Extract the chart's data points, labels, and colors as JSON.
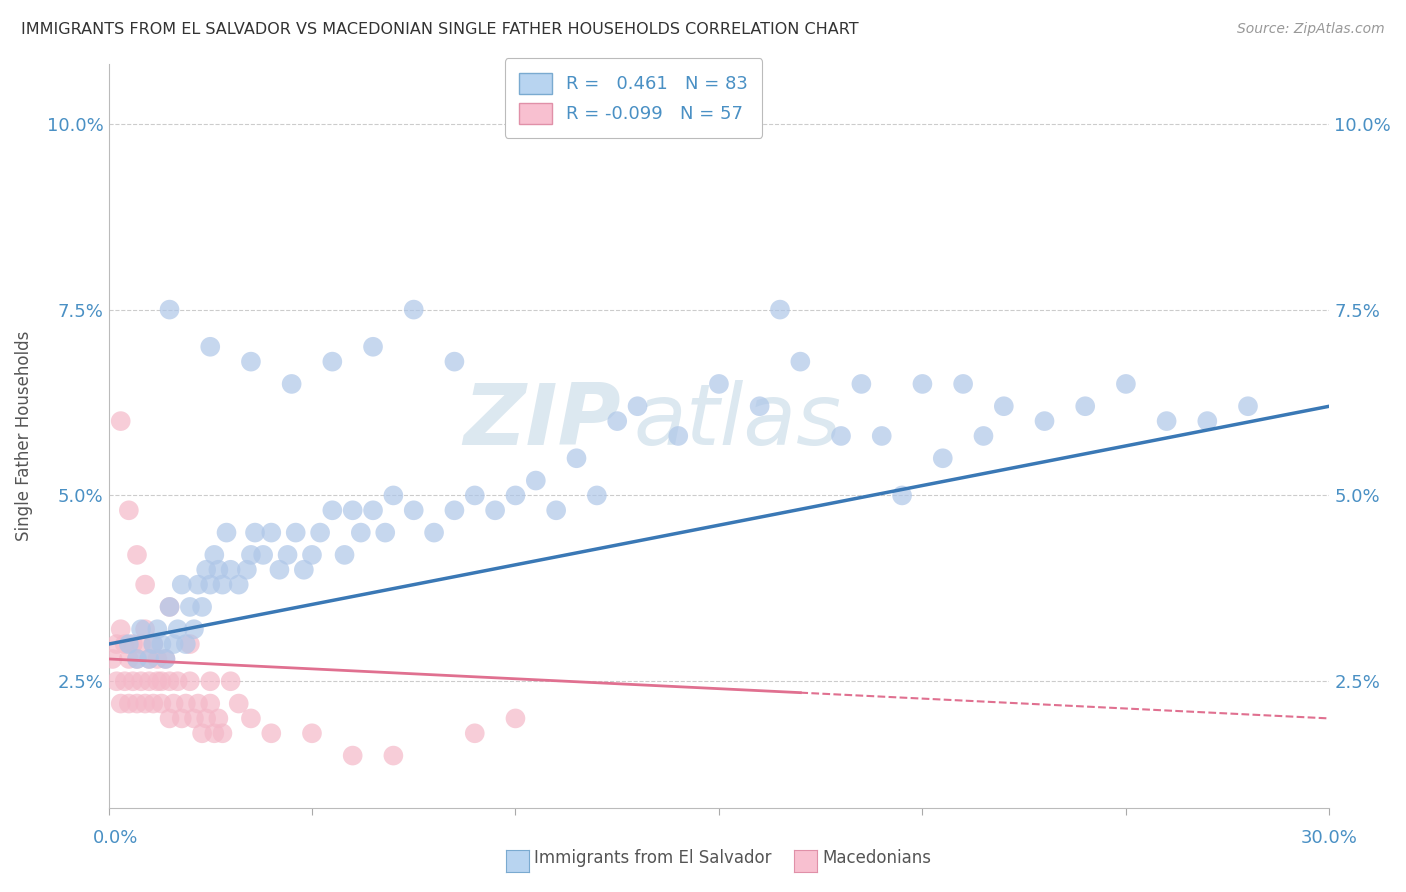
{
  "title": "IMMIGRANTS FROM EL SALVADOR VS MACEDONIAN SINGLE FATHER HOUSEHOLDS CORRELATION CHART",
  "source": "Source: ZipAtlas.com",
  "ylabel": "Single Father Households",
  "blue_color": "#aec6e8",
  "pink_color": "#f4b8c8",
  "blue_line_color": "#3a78b5",
  "pink_line_color": "#e07090",
  "watermark_color": "#dce8f0",
  "xlim": [
    0.0,
    0.3
  ],
  "ylim": [
    0.008,
    0.108
  ],
  "ytick_vals": [
    0.025,
    0.05,
    0.075,
    0.1
  ],
  "blue_scatter_x": [
    0.005,
    0.007,
    0.008,
    0.01,
    0.011,
    0.012,
    0.013,
    0.014,
    0.015,
    0.016,
    0.017,
    0.018,
    0.019,
    0.02,
    0.021,
    0.022,
    0.023,
    0.024,
    0.025,
    0.026,
    0.027,
    0.028,
    0.029,
    0.03,
    0.032,
    0.034,
    0.035,
    0.036,
    0.038,
    0.04,
    0.042,
    0.044,
    0.046,
    0.048,
    0.05,
    0.052,
    0.055,
    0.058,
    0.06,
    0.062,
    0.065,
    0.068,
    0.07,
    0.075,
    0.08,
    0.085,
    0.09,
    0.095,
    0.1,
    0.105,
    0.11,
    0.115,
    0.12,
    0.125,
    0.13,
    0.14,
    0.15,
    0.16,
    0.17,
    0.18,
    0.19,
    0.2,
    0.21,
    0.22,
    0.23,
    0.24,
    0.25,
    0.26,
    0.27,
    0.28,
    0.015,
    0.025,
    0.035,
    0.045,
    0.055,
    0.065,
    0.075,
    0.085,
    0.165,
    0.185,
    0.195,
    0.205,
    0.215
  ],
  "blue_scatter_y": [
    0.03,
    0.028,
    0.032,
    0.028,
    0.03,
    0.032,
    0.03,
    0.028,
    0.035,
    0.03,
    0.032,
    0.038,
    0.03,
    0.035,
    0.032,
    0.038,
    0.035,
    0.04,
    0.038,
    0.042,
    0.04,
    0.038,
    0.045,
    0.04,
    0.038,
    0.04,
    0.042,
    0.045,
    0.042,
    0.045,
    0.04,
    0.042,
    0.045,
    0.04,
    0.042,
    0.045,
    0.048,
    0.042,
    0.048,
    0.045,
    0.048,
    0.045,
    0.05,
    0.048,
    0.045,
    0.048,
    0.05,
    0.048,
    0.05,
    0.052,
    0.048,
    0.055,
    0.05,
    0.06,
    0.062,
    0.058,
    0.065,
    0.062,
    0.068,
    0.058,
    0.058,
    0.065,
    0.065,
    0.062,
    0.06,
    0.062,
    0.065,
    0.06,
    0.06,
    0.062,
    0.075,
    0.07,
    0.068,
    0.065,
    0.068,
    0.07,
    0.075,
    0.068,
    0.075,
    0.065,
    0.05,
    0.055,
    0.058
  ],
  "pink_scatter_x": [
    0.001,
    0.002,
    0.002,
    0.003,
    0.003,
    0.004,
    0.004,
    0.005,
    0.005,
    0.006,
    0.006,
    0.007,
    0.007,
    0.008,
    0.008,
    0.009,
    0.009,
    0.01,
    0.01,
    0.011,
    0.011,
    0.012,
    0.012,
    0.013,
    0.013,
    0.014,
    0.015,
    0.015,
    0.016,
    0.017,
    0.018,
    0.019,
    0.02,
    0.021,
    0.022,
    0.023,
    0.024,
    0.025,
    0.026,
    0.027,
    0.028,
    0.03,
    0.032,
    0.035,
    0.04,
    0.05,
    0.06,
    0.07,
    0.09,
    0.1,
    0.003,
    0.005,
    0.007,
    0.009,
    0.015,
    0.02,
    0.025
  ],
  "pink_scatter_y": [
    0.028,
    0.03,
    0.025,
    0.032,
    0.022,
    0.03,
    0.025,
    0.028,
    0.022,
    0.03,
    0.025,
    0.028,
    0.022,
    0.03,
    0.025,
    0.032,
    0.022,
    0.028,
    0.025,
    0.03,
    0.022,
    0.025,
    0.028,
    0.022,
    0.025,
    0.028,
    0.025,
    0.02,
    0.022,
    0.025,
    0.02,
    0.022,
    0.025,
    0.02,
    0.022,
    0.018,
    0.02,
    0.022,
    0.018,
    0.02,
    0.018,
    0.025,
    0.022,
    0.02,
    0.018,
    0.018,
    0.015,
    0.015,
    0.018,
    0.02,
    0.06,
    0.048,
    0.042,
    0.038,
    0.035,
    0.03,
    0.025
  ],
  "blue_line_start_x": 0.0,
  "blue_line_start_y": 0.03,
  "blue_line_end_x": 0.3,
  "blue_line_end_y": 0.062,
  "pink_line_start_x": 0.0,
  "pink_line_start_y": 0.028,
  "pink_line_end_x": 0.3,
  "pink_line_end_y": 0.02
}
